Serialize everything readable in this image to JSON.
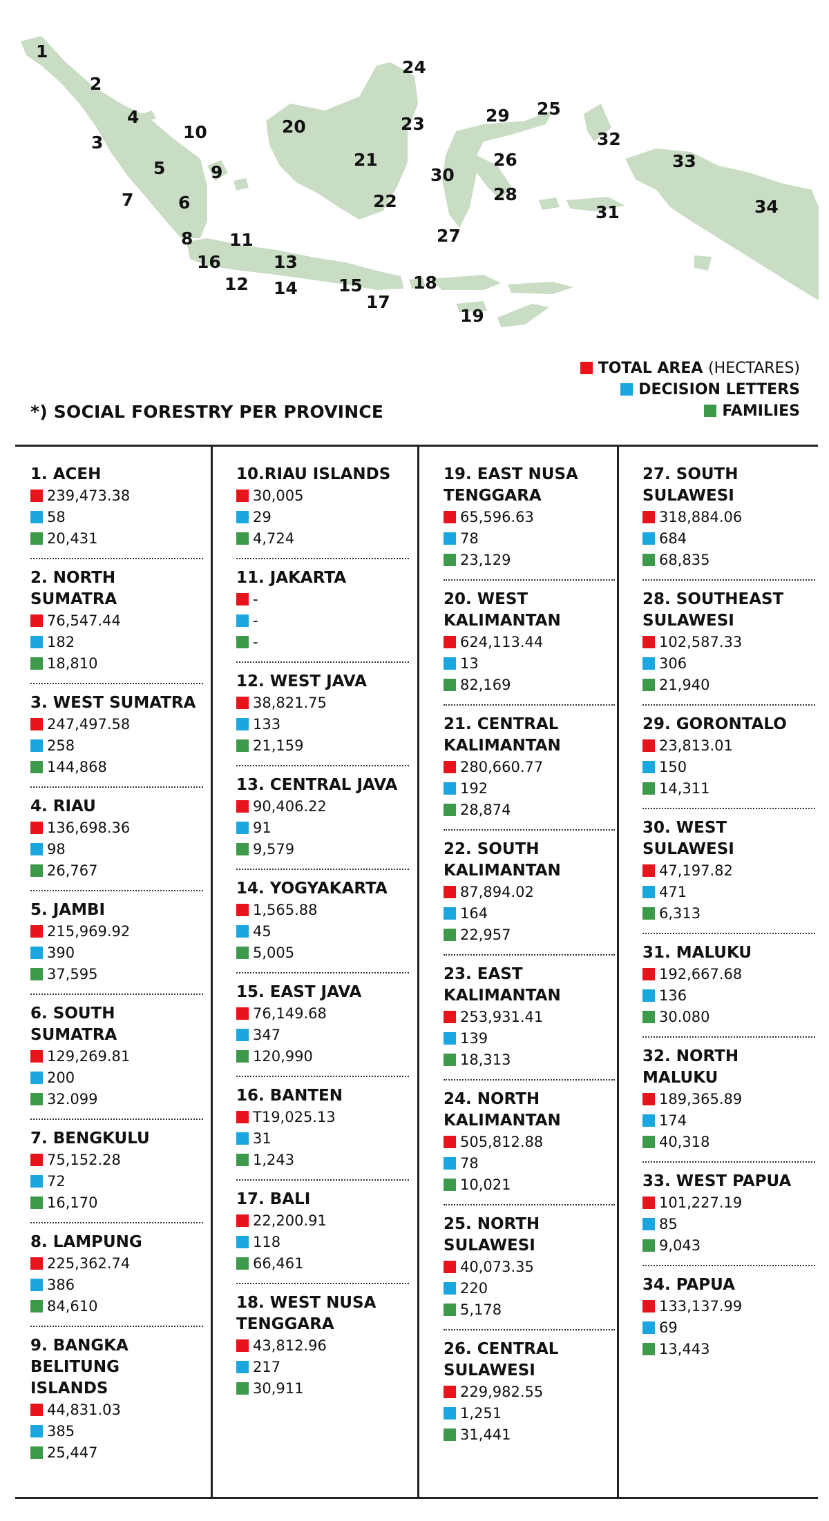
{
  "map": {
    "labels": [
      "1",
      "2",
      "3",
      "4",
      "5",
      "6",
      "7",
      "8",
      "9",
      "10",
      "11",
      "12",
      "13",
      "14",
      "15",
      "16",
      "17",
      "18",
      "19",
      "20",
      "21",
      "22",
      "23",
      "24",
      "25",
      "26",
      "27",
      "28",
      "29",
      "30",
      "31",
      "32",
      "33",
      "34"
    ]
  },
  "legend": {
    "total_area": "TOTAL AREA",
    "total_area_unit": "(HECTARES)",
    "decision_letters": "DECISION LETTERS",
    "families": "FAMILIES",
    "colors": {
      "total_area": "#e8141b",
      "decision_letters": "#1aa6df",
      "families": "#3e9a4b"
    }
  },
  "title": "*) SOCIAL FORESTRY PER PROVINCE",
  "provinces": [
    {
      "name": "1. ACEH",
      "area": "239,473.38",
      "letters": "58",
      "families": "20,431"
    },
    {
      "name": "2. NORTH SUMATRA",
      "area": "76,547.44",
      "letters": "182",
      "families": "18,810"
    },
    {
      "name": "3. WEST SUMATRA",
      "area": "247,497.58",
      "letters": "258",
      "families": "144,868"
    },
    {
      "name": "4. RIAU",
      "area": "136,698.36",
      "letters": "98",
      "families": "26,767"
    },
    {
      "name": "5. JAMBI",
      "area": "215,969.92",
      "letters": "390",
      "families": "37,595"
    },
    {
      "name": "6. SOUTH SUMATRA",
      "area": "129,269.81",
      "letters": "200",
      "families": "32.099"
    },
    {
      "name": "7. BENGKULU",
      "area": "75,152.28",
      "letters": "72",
      "families": "16,170"
    },
    {
      "name": "8. LAMPUNG",
      "area": "225,362.74",
      "letters": "386",
      "families": "84,610"
    },
    {
      "name": "9. BANGKA BELITUNG ISLANDS",
      "area": "44,831.03",
      "letters": "385",
      "families": "25,447"
    },
    {
      "name": "10.RIAU ISLANDS",
      "area": "30,005",
      "letters": "29",
      "families": "4,724"
    },
    {
      "name": "11. JAKARTA",
      "area": "-",
      "letters": "-",
      "families": "-"
    },
    {
      "name": "12. WEST JAVA",
      "area": "38,821.75",
      "letters": "133",
      "families": "21,159"
    },
    {
      "name": "13. CENTRAL JAVA",
      "area": "90,406.22",
      "letters": "91",
      "families": "9,579"
    },
    {
      "name": "14. YOGYAKARTA",
      "area": "1,565.88",
      "letters": "45",
      "families": "5,005"
    },
    {
      "name": "15. EAST JAVA",
      "area": "76,149.68",
      "letters": "347",
      "families": "120,990"
    },
    {
      "name": "16. BANTEN",
      "area": "T19,025.13",
      "letters": "31",
      "families": "1,243"
    },
    {
      "name": "17. BALI",
      "area": "22,200.91",
      "letters": "118",
      "families": "66,461"
    },
    {
      "name": "18. WEST NUSA TENGGARA",
      "area": "43,812.96",
      "letters": "217",
      "families": "30,911"
    },
    {
      "name": "19. EAST NUSA TENGGARA",
      "area": "65,596.63",
      "letters": "78",
      "families": "23,129"
    },
    {
      "name": "20. WEST KALIMANTAN",
      "area": "624,113.44",
      "letters": "13",
      "families": "82,169"
    },
    {
      "name": "21. CENTRAL KALIMANTAN",
      "area": "280,660.77",
      "letters": "192",
      "families": "28,874"
    },
    {
      "name": "22. SOUTH KALIMANTAN",
      "area": "87,894.02",
      "letters": "164",
      "families": "22,957"
    },
    {
      "name": "23. EAST KALIMANTAN",
      "area": "253,931.41",
      "letters": "139",
      "families": "18,313"
    },
    {
      "name": "24. NORTH KALIMANTAN",
      "area": "505,812.88",
      "letters": "78",
      "families": "10,021"
    },
    {
      "name": "25. NORTH SULAWESI",
      "area": "40,073.35",
      "letters": "220",
      "families": "5,178"
    },
    {
      "name": "26. CENTRAL SULAWESI",
      "area": "229,982.55",
      "letters": "1,251",
      "families": "31,441"
    },
    {
      "name": "27. SOUTH SULAWESI",
      "area": "318,884.06",
      "letters": "684",
      "families": "68,835"
    },
    {
      "name": "28. SOUTHEAST SULAWESI",
      "area": "102,587.33",
      "letters": "306",
      "families": "21,940"
    },
    {
      "name": "29. GORONTALO",
      "area": "23,813.01",
      "letters": "150",
      "families": "14,311"
    },
    {
      "name": "30. WEST SULAWESI",
      "area": "47,197.82",
      "letters": "471",
      "families": "6,313"
    },
    {
      "name": "31. MALUKU",
      "area": "192,667.68",
      "letters": "136",
      "families": "30.080"
    },
    {
      "name": "32. NORTH MALUKU",
      "area": "189,365.89",
      "letters": "174",
      "families": "40,318"
    },
    {
      "name": "33. WEST PAPUA",
      "area": "101,227.19",
      "letters": "85",
      "families": "9,043"
    },
    {
      "name": "34. PAPUA",
      "area": "133,137.99",
      "letters": "69",
      "families": "13,443"
    }
  ]
}
